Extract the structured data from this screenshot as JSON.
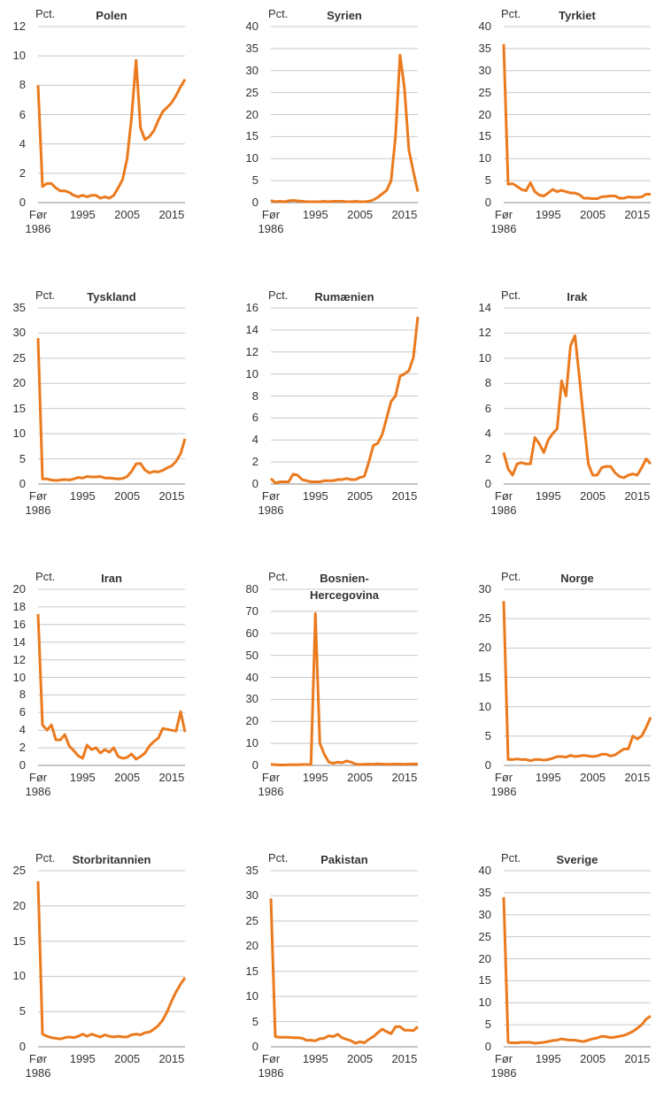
{
  "chart_data": [
    {
      "type": "line",
      "title": "Polen",
      "y_label": "Pct.",
      "color": "#eb7a1e",
      "grid": true,
      "categories": [
        "Før 1986",
        null,
        null,
        null,
        null,
        null,
        null,
        null,
        null,
        null,
        "1995",
        null,
        null,
        null,
        null,
        null,
        null,
        null,
        null,
        null,
        "2005",
        null,
        null,
        null,
        null,
        null,
        null,
        null,
        null,
        null,
        "2015",
        null,
        null,
        null
      ],
      "values": [
        8,
        1.1,
        1.3,
        1.3,
        1.0,
        0.8,
        0.8,
        0.7,
        0.5,
        0.4,
        0.5,
        0.4,
        0.5,
        0.5,
        0.3,
        0.4,
        0.3,
        0.5,
        1.0,
        1.6,
        3.0,
        5.8,
        9.7,
        5.1,
        4.3,
        4.5,
        4.9,
        5.6,
        6.2,
        6.5,
        6.8,
        7.3,
        7.9,
        8.4
      ],
      "ylim": [
        0,
        12
      ],
      "yticks": [
        0,
        2,
        4,
        6,
        8,
        10,
        12
      ]
    },
    {
      "type": "line",
      "title": "Syrien",
      "y_label": "Pct.",
      "color": "#eb7a1e",
      "grid": true,
      "categories": [
        "Før 1986",
        null,
        null,
        null,
        null,
        null,
        null,
        null,
        null,
        null,
        "1995",
        null,
        null,
        null,
        null,
        null,
        null,
        null,
        null,
        null,
        "2005",
        null,
        null,
        null,
        null,
        null,
        null,
        null,
        null,
        null,
        "2015",
        null,
        null,
        null
      ],
      "values": [
        0.5,
        0.2,
        0.3,
        0.2,
        0.4,
        0.5,
        0.4,
        0.3,
        0.2,
        0.2,
        0.2,
        0.2,
        0.3,
        0.2,
        0.3,
        0.3,
        0.3,
        0.2,
        0.2,
        0.3,
        0.2,
        0.2,
        0.3,
        0.6,
        1.2,
        2.0,
        2.8,
        5,
        15,
        33.5,
        26,
        12,
        7,
        2.5
      ],
      "ylim": [
        0,
        40
      ],
      "yticks": [
        0,
        5,
        10,
        15,
        20,
        25,
        30,
        35,
        40
      ]
    },
    {
      "type": "line",
      "title": "Tyrkiet",
      "y_label": "Pct.",
      "color": "#eb7a1e",
      "grid": true,
      "categories": [
        "Før 1986",
        null,
        null,
        null,
        null,
        null,
        null,
        null,
        null,
        null,
        "1995",
        null,
        null,
        null,
        null,
        null,
        null,
        null,
        null,
        null,
        "2005",
        null,
        null,
        null,
        null,
        null,
        null,
        null,
        null,
        null,
        "2015",
        null,
        null,
        null
      ],
      "values": [
        36,
        4.2,
        4.3,
        3.7,
        3.0,
        2.7,
        4.5,
        2.5,
        1.7,
        1.5,
        2.2,
        3.0,
        2.5,
        2.8,
        2.5,
        2.2,
        2.2,
        1.8,
        1.0,
        1.0,
        0.9,
        0.9,
        1.3,
        1.4,
        1.5,
        1.5,
        1.0,
        1.0,
        1.3,
        1.2,
        1.2,
        1.3,
        1.9,
        1.9
      ],
      "ylim": [
        0,
        40
      ],
      "yticks": [
        0,
        5,
        10,
        15,
        20,
        25,
        30,
        35,
        40
      ]
    },
    {
      "type": "line",
      "title": "Tyskland",
      "y_label": "Pct.",
      "color": "#eb7a1e",
      "grid": true,
      "categories": [
        "Før 1986",
        null,
        null,
        null,
        null,
        null,
        null,
        null,
        null,
        null,
        "1995",
        null,
        null,
        null,
        null,
        null,
        null,
        null,
        null,
        null,
        "2005",
        null,
        null,
        null,
        null,
        null,
        null,
        null,
        null,
        null,
        "2015",
        null,
        null,
        null
      ],
      "values": [
        29,
        1.0,
        1.0,
        0.8,
        0.7,
        0.8,
        0.9,
        0.8,
        1.0,
        1.3,
        1.2,
        1.5,
        1.4,
        1.4,
        1.5,
        1.2,
        1.2,
        1.1,
        1.0,
        1.1,
        1.5,
        2.5,
        4.0,
        4.1,
        2.8,
        2.2,
        2.5,
        2.4,
        2.7,
        3.2,
        3.6,
        4.5,
        6.0,
        9.0
      ],
      "ylim": [
        0,
        35
      ],
      "yticks": [
        0,
        5,
        10,
        15,
        20,
        25,
        30,
        35
      ]
    },
    {
      "type": "line",
      "title": "Rumænien",
      "y_label": "Pct.",
      "color": "#eb7a1e",
      "grid": true,
      "categories": [
        "Før 1986",
        null,
        null,
        null,
        null,
        null,
        null,
        null,
        null,
        null,
        "1995",
        null,
        null,
        null,
        null,
        null,
        null,
        null,
        null,
        null,
        "2005",
        null,
        null,
        null,
        null,
        null,
        null,
        null,
        null,
        null,
        "2015",
        null,
        null,
        null
      ],
      "values": [
        0.5,
        0.1,
        0.2,
        0.2,
        0.2,
        0.9,
        0.8,
        0.4,
        0.3,
        0.2,
        0.2,
        0.2,
        0.3,
        0.3,
        0.3,
        0.4,
        0.4,
        0.5,
        0.4,
        0.4,
        0.6,
        0.7,
        2.0,
        3.5,
        3.7,
        4.5,
        6.0,
        7.5,
        8.0,
        9.8,
        10.0,
        10.3,
        11.5,
        15.2
      ],
      "ylim": [
        0,
        16
      ],
      "yticks": [
        0,
        2,
        4,
        6,
        8,
        10,
        12,
        14,
        16
      ]
    },
    {
      "type": "line",
      "title": "Irak",
      "y_label": "Pct.",
      "color": "#eb7a1e",
      "grid": true,
      "categories": [
        "Før 1986",
        null,
        null,
        null,
        null,
        null,
        null,
        null,
        null,
        null,
        "1995",
        null,
        null,
        null,
        null,
        null,
        null,
        null,
        null,
        null,
        "2005",
        null,
        null,
        null,
        null,
        null,
        null,
        null,
        null,
        null,
        "2015",
        null,
        null,
        null
      ],
      "values": [
        2.5,
        1.2,
        0.7,
        1.6,
        1.7,
        1.6,
        1.6,
        3.7,
        3.2,
        2.5,
        3.5,
        4.0,
        4.4,
        8.2,
        7.0,
        11.0,
        11.8,
        8.5,
        5.0,
        1.6,
        0.7,
        0.7,
        1.3,
        1.4,
        1.4,
        0.9,
        0.6,
        0.5,
        0.7,
        0.8,
        0.7,
        1.3,
        2.0,
        1.6
      ],
      "ylim": [
        0,
        14
      ],
      "yticks": [
        0,
        2,
        4,
        6,
        8,
        10,
        12,
        14
      ]
    },
    {
      "type": "line",
      "title": "Iran",
      "y_label": "Pct.",
      "color": "#eb7a1e",
      "grid": true,
      "categories": [
        "Før 1986",
        null,
        null,
        null,
        null,
        null,
        null,
        null,
        null,
        null,
        "1995",
        null,
        null,
        null,
        null,
        null,
        null,
        null,
        null,
        null,
        "2005",
        null,
        null,
        null,
        null,
        null,
        null,
        null,
        null,
        null,
        "2015",
        null,
        null,
        null
      ],
      "values": [
        17.2,
        4.6,
        4.0,
        4.6,
        2.9,
        2.9,
        3.5,
        2.2,
        1.7,
        1.1,
        0.8,
        2.3,
        1.8,
        2.0,
        1.4,
        1.8,
        1.5,
        2.0,
        1.0,
        0.8,
        0.9,
        1.3,
        0.7,
        1.0,
        1.4,
        2.2,
        2.7,
        3.1,
        4.2,
        4.1,
        4.0,
        3.9,
        6.1,
        3.8
      ],
      "ylim": [
        0,
        20
      ],
      "yticks": [
        0,
        2,
        4,
        6,
        8,
        10,
        12,
        14,
        16,
        18,
        20
      ]
    },
    {
      "type": "line",
      "title": "Bosnien-Hercegovina",
      "y_label": "Pct.",
      "color": "#eb7a1e",
      "grid": true,
      "categories": [
        "Før 1986",
        null,
        null,
        null,
        null,
        null,
        null,
        null,
        null,
        null,
        "1995",
        null,
        null,
        null,
        null,
        null,
        null,
        null,
        null,
        null,
        "2005",
        null,
        null,
        null,
        null,
        null,
        null,
        null,
        null,
        null,
        "2015",
        null,
        null,
        null
      ],
      "values": [
        0.5,
        0.3,
        0.2,
        0.2,
        0.3,
        0.3,
        0.3,
        0.4,
        0.4,
        0.4,
        69,
        10,
        5,
        1.5,
        1.0,
        1.5,
        1.2,
        2.0,
        1.5,
        0.6,
        0.4,
        0.5,
        0.6,
        0.5,
        0.7,
        0.6,
        0.5,
        0.5,
        0.6,
        0.6,
        0.5,
        0.6,
        0.7,
        0.6
      ],
      "ylim": [
        0,
        80
      ],
      "yticks": [
        0,
        10,
        20,
        30,
        40,
        50,
        60,
        70,
        80
      ]
    },
    {
      "type": "line",
      "title": "Norge",
      "y_label": "Pct.",
      "color": "#eb7a1e",
      "grid": true,
      "categories": [
        "Før 1986",
        null,
        null,
        null,
        null,
        null,
        null,
        null,
        null,
        null,
        "1995",
        null,
        null,
        null,
        null,
        null,
        null,
        null,
        null,
        null,
        "2005",
        null,
        null,
        null,
        null,
        null,
        null,
        null,
        null,
        null,
        "2015",
        null,
        null,
        null
      ],
      "values": [
        28,
        1.0,
        1.0,
        1.1,
        1.0,
        1.0,
        0.8,
        1.0,
        1.0,
        0.9,
        1.0,
        1.2,
        1.5,
        1.5,
        1.4,
        1.7,
        1.5,
        1.6,
        1.7,
        1.6,
        1.5,
        1.6,
        1.9,
        1.9,
        1.6,
        1.8,
        2.3,
        2.8,
        2.8,
        5.0,
        4.5,
        5.0,
        6.5,
        8.2
      ],
      "ylim": [
        0,
        30
      ],
      "yticks": [
        0,
        5,
        10,
        15,
        20,
        25,
        30
      ]
    },
    {
      "type": "line",
      "title": "Storbritannien",
      "y_label": "Pct.",
      "color": "#eb7a1e",
      "grid": true,
      "categories": [
        "Før 1986",
        null,
        null,
        null,
        null,
        null,
        null,
        null,
        null,
        null,
        "1995",
        null,
        null,
        null,
        null,
        null,
        null,
        null,
        null,
        null,
        "2005",
        null,
        null,
        null,
        null,
        null,
        null,
        null,
        null,
        null,
        "2015",
        null,
        null,
        null
      ],
      "values": [
        23.5,
        1.8,
        1.5,
        1.3,
        1.2,
        1.1,
        1.3,
        1.4,
        1.3,
        1.5,
        1.8,
        1.5,
        1.8,
        1.6,
        1.4,
        1.7,
        1.5,
        1.4,
        1.5,
        1.4,
        1.4,
        1.7,
        1.8,
        1.7,
        2.0,
        2.1,
        2.5,
        3.0,
        3.8,
        5.0,
        6.5,
        7.8,
        8.9,
        9.8
      ],
      "ylim": [
        0,
        25
      ],
      "yticks": [
        0,
        5,
        10,
        15,
        20,
        25
      ]
    },
    {
      "type": "line",
      "title": "Pakistan",
      "y_label": "Pct.",
      "color": "#eb7a1e",
      "grid": true,
      "categories": [
        "Før 1986",
        null,
        null,
        null,
        null,
        null,
        null,
        null,
        null,
        null,
        "1995",
        null,
        null,
        null,
        null,
        null,
        null,
        null,
        null,
        null,
        "2005",
        null,
        null,
        null,
        null,
        null,
        null,
        null,
        null,
        null,
        "2015",
        null,
        null,
        null
      ],
      "values": [
        29.5,
        2.0,
        1.9,
        1.9,
        1.9,
        1.8,
        1.8,
        1.7,
        1.3,
        1.3,
        1.2,
        1.6,
        1.7,
        2.2,
        2.0,
        2.5,
        1.8,
        1.5,
        1.2,
        0.7,
        1.0,
        0.8,
        1.5,
        2.0,
        2.8,
        3.5,
        3.0,
        2.6,
        4.0,
        4.0,
        3.3,
        3.3,
        3.2,
        4.0
      ],
      "ylim": [
        0,
        35
      ],
      "yticks": [
        0,
        5,
        10,
        15,
        20,
        25,
        30,
        35
      ]
    },
    {
      "type": "line",
      "title": "Sverige",
      "y_label": "Pct.",
      "color": "#eb7a1e",
      "grid": true,
      "categories": [
        "Før 1986",
        null,
        null,
        null,
        null,
        null,
        null,
        null,
        null,
        null,
        "1995",
        null,
        null,
        null,
        null,
        null,
        null,
        null,
        null,
        null,
        "2005",
        null,
        null,
        null,
        null,
        null,
        null,
        null,
        null,
        null,
        "2015",
        null,
        null,
        null
      ],
      "values": [
        34,
        1.0,
        0.9,
        0.9,
        1.0,
        1.0,
        1.0,
        0.8,
        0.9,
        1.0,
        1.2,
        1.4,
        1.5,
        1.8,
        1.6,
        1.5,
        1.5,
        1.3,
        1.2,
        1.5,
        1.8,
        2.0,
        2.4,
        2.3,
        2.1,
        2.2,
        2.4,
        2.6,
        3.0,
        3.5,
        4.2,
        5.0,
        6.3,
        7.0
      ],
      "ylim": [
        0,
        40
      ],
      "yticks": [
        0,
        5,
        10,
        15,
        20,
        25,
        30,
        35,
        40
      ]
    }
  ]
}
